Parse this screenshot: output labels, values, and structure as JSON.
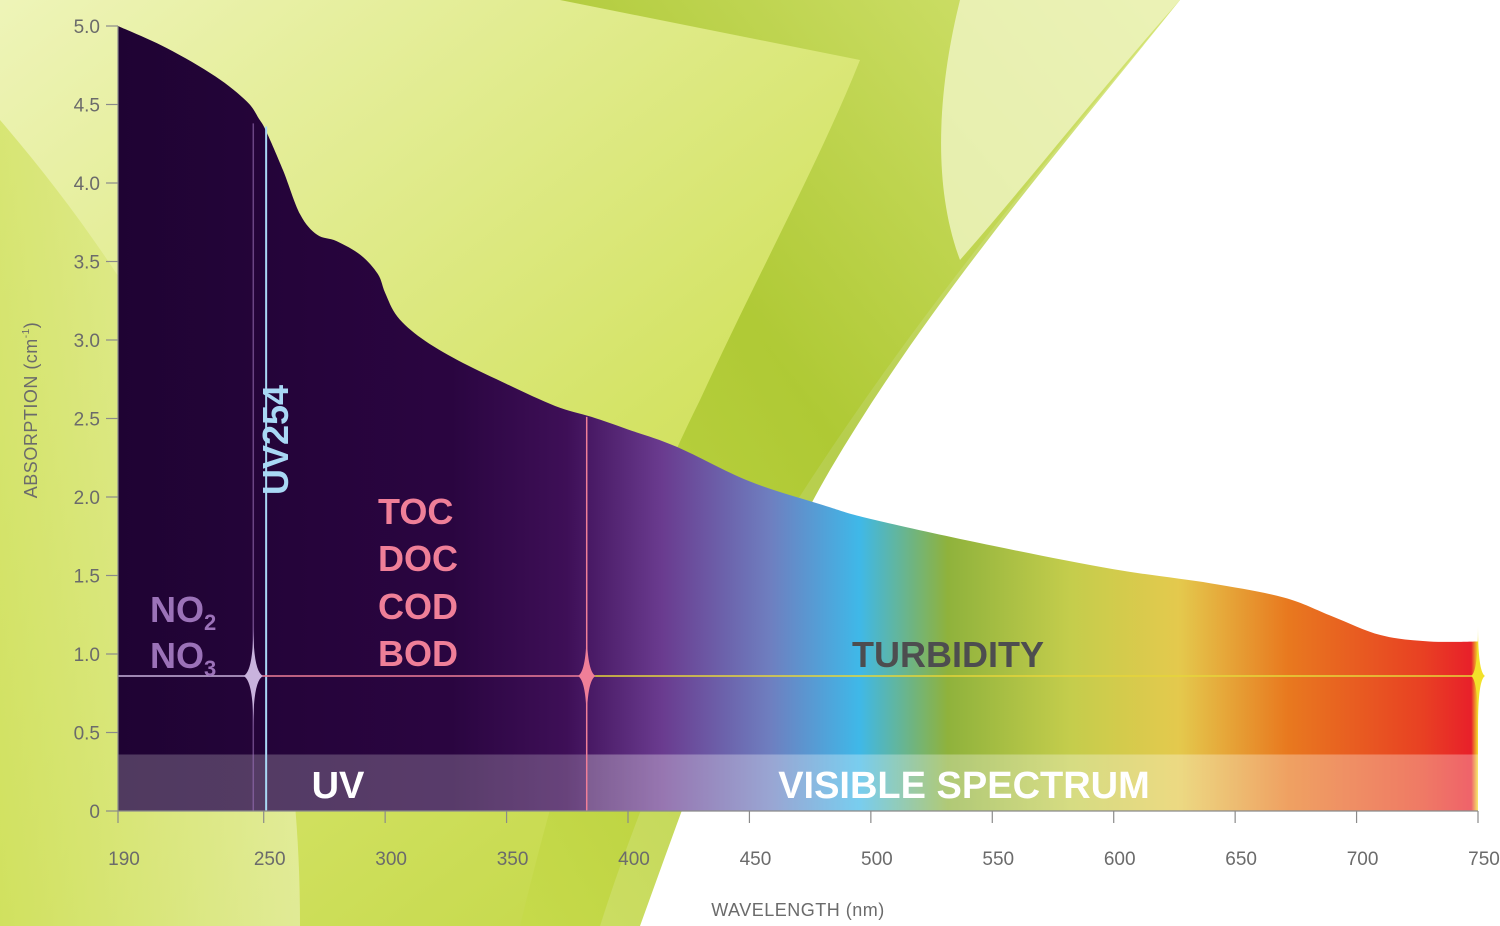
{
  "chart_data": {
    "type": "area",
    "xlabel": "WAVELENGTH (nm)",
    "ylabel": "ABSORPTION (cm",
    "ylabel_sup": "-1",
    "ylabel_close": ")",
    "xlim": [
      190,
      750
    ],
    "ylim": [
      0,
      5.0
    ],
    "x_ticks": [
      190,
      250,
      300,
      350,
      400,
      450,
      500,
      550,
      600,
      650,
      700,
      750
    ],
    "x_tick_labels": [
      "190",
      "250",
      "300",
      "350",
      "400",
      "450",
      "500",
      "550",
      "600",
      "650",
      "700",
      "750"
    ],
    "y_ticks": [
      0,
      0.5,
      1.0,
      1.5,
      2.0,
      2.5,
      3.0,
      3.5,
      4.0,
      4.5,
      5.0
    ],
    "y_tick_labels": [
      "0",
      "0.5",
      "1.0",
      "1.5",
      "2.0",
      "2.5",
      "3.0",
      "3.5",
      "4.0",
      "4.5",
      "5.0"
    ],
    "series": [
      {
        "x": [
          190,
          210,
          230,
          243,
          248,
          251,
          258,
          265,
          272,
          280,
          290,
          297,
          300,
          305,
          315,
          330,
          350,
          370,
          385,
          400,
          420,
          450,
          480,
          500,
          550,
          600,
          640,
          670,
          690,
          710,
          730,
          750
        ],
        "y": [
          5.0,
          4.86,
          4.68,
          4.52,
          4.41,
          4.33,
          4.08,
          3.8,
          3.67,
          3.63,
          3.54,
          3.42,
          3.3,
          3.15,
          3.01,
          2.87,
          2.72,
          2.58,
          2.51,
          2.43,
          2.32,
          2.1,
          1.95,
          1.86,
          1.69,
          1.54,
          1.45,
          1.36,
          1.24,
          1.12,
          1.08,
          1.08
        ]
      }
    ],
    "markers": [
      {
        "label": "UV254",
        "x": 251,
        "color": "#a9d8f5"
      },
      {
        "label_lines": [
          "NO",
          "NO"
        ],
        "subscripts": [
          "2",
          "3"
        ],
        "x": 249,
        "color": "#9b72b8"
      },
      {
        "label_lines": [
          "TOC",
          "DOC",
          "COD",
          "BOD"
        ],
        "x": 383,
        "color": "#ef7f98"
      },
      {
        "label": "TURBIDITY",
        "color": "#4d4d4f"
      }
    ],
    "bands": [
      {
        "label": "UV",
        "x": [
          190,
          383
        ]
      },
      {
        "label": "VISIBLE SPECTRUM",
        "x": [
          383,
          750
        ]
      }
    ],
    "spectrum_colors": {
      "uv_dark": "#1f0333",
      "violet": "#8a5ea8",
      "blue": "#3fb8e8",
      "green": "#9cb232",
      "yellow": "#e1dc60",
      "orange": "#e8751f",
      "red": "#e8242a"
    },
    "background": {
      "leaf_light": "#e4ee9f",
      "leaf_mid": "#c9dd47",
      "leaf_dark": "#a9c628"
    }
  }
}
